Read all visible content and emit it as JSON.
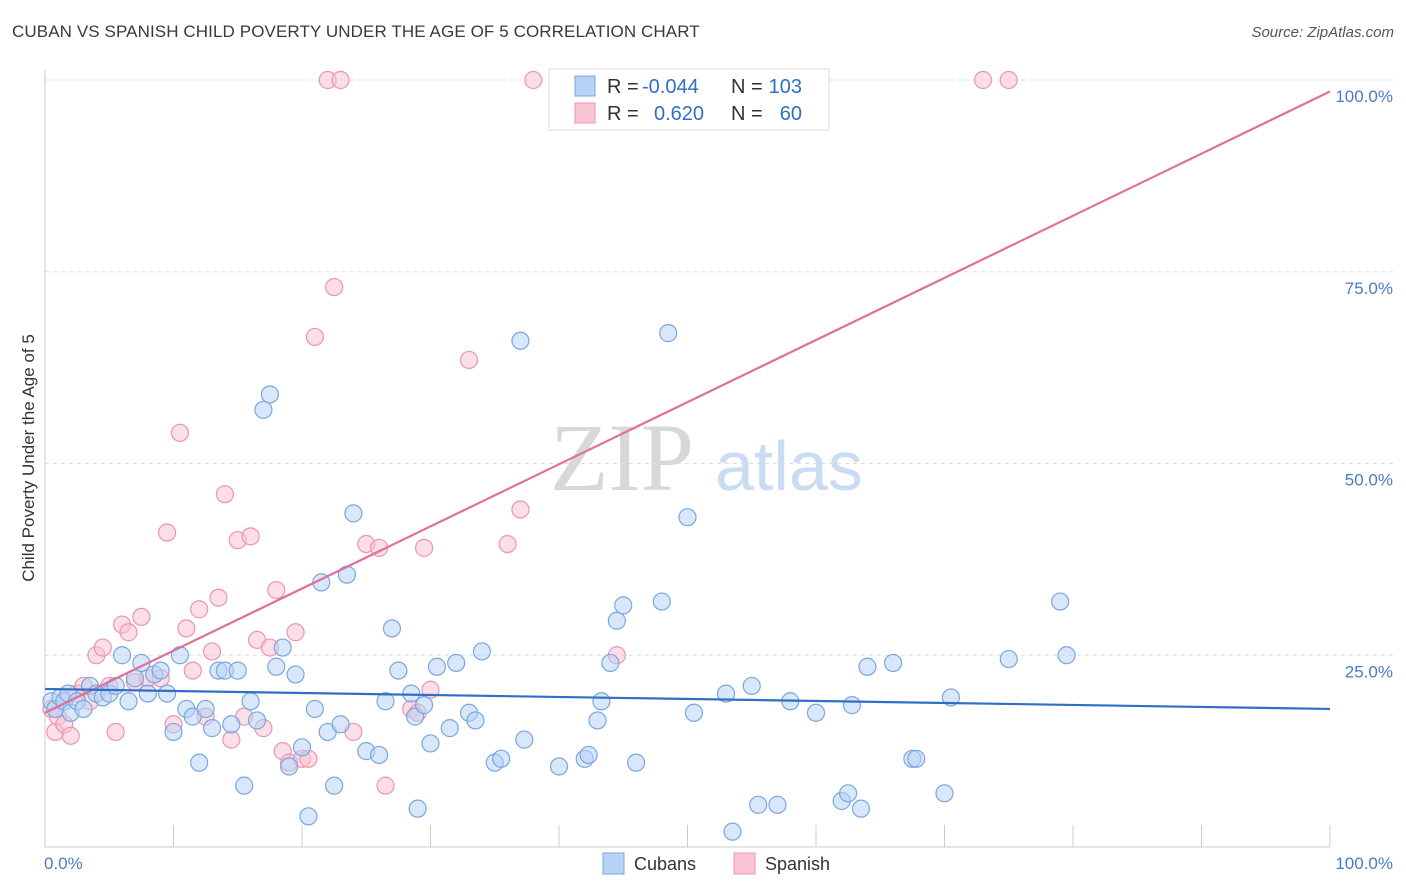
{
  "header": {
    "title": "CUBAN VS SPANISH CHILD POVERTY UNDER THE AGE OF 5 CORRELATION CHART",
    "source": "Source: ZipAtlas.com"
  },
  "watermark": {
    "zip": "ZIP",
    "atlas": "atlas"
  },
  "legend": {
    "rows": [
      {
        "r_label": "R =",
        "r_value": "-0.044",
        "n_label": "N =",
        "n_value": "103"
      },
      {
        "r_label": "R =",
        "r_value": "0.620",
        "n_label": "N =",
        "n_value": "60"
      }
    ]
  },
  "bottom_legend": [
    "Cubans",
    "Spanish"
  ],
  "colors": {
    "cubans_fill": "#b8d3f5",
    "cubans_stroke": "#7aa7e0",
    "cubans_line": "#2f6fc4",
    "spanish_fill": "#f8c3d3",
    "spanish_stroke": "#ee94b0",
    "spanish_line": "#e0709a",
    "tick": "#4a7cc4",
    "grid": "#dddddd"
  },
  "chart_data": {
    "type": "scatter",
    "title": "CUBAN VS SPANISH CHILD POVERTY UNDER THE AGE OF 5 CORRELATION CHART",
    "xlabel": "",
    "ylabel": "Child Poverty Under the Age of 5",
    "xlim": [
      0,
      100
    ],
    "ylim": [
      0,
      100
    ],
    "x_tick_labels": [
      "0.0%",
      "100.0%"
    ],
    "y_ticks": [
      25,
      50,
      75,
      100
    ],
    "y_tick_labels": [
      "25.0%",
      "50.0%",
      "75.0%",
      "100.0%"
    ],
    "grid": true,
    "legend_position": "top-center",
    "series": [
      {
        "name": "Cubans",
        "r": -0.044,
        "n": 103,
        "trend": {
          "x": [
            0,
            100
          ],
          "y": [
            20.6,
            18.0
          ]
        },
        "points": [
          [
            0.5,
            19
          ],
          [
            0.8,
            18
          ],
          [
            1.2,
            19.5
          ],
          [
            1.5,
            19
          ],
          [
            1.8,
            20
          ],
          [
            2,
            17.5
          ],
          [
            2.5,
            19
          ],
          [
            3,
            18
          ],
          [
            3.5,
            21
          ],
          [
            4,
            20
          ],
          [
            4.5,
            19.5
          ],
          [
            5,
            20
          ],
          [
            5.5,
            21
          ],
          [
            6,
            25
          ],
          [
            6.5,
            19
          ],
          [
            7,
            22
          ],
          [
            7.5,
            24
          ],
          [
            8,
            20
          ],
          [
            8.5,
            22.5
          ],
          [
            9,
            23
          ],
          [
            9.5,
            20
          ],
          [
            10,
            15
          ],
          [
            10.5,
            25
          ],
          [
            11,
            18
          ],
          [
            11.5,
            17
          ],
          [
            12,
            11
          ],
          [
            12.5,
            18
          ],
          [
            13,
            15.5
          ],
          [
            13.5,
            23
          ],
          [
            14,
            23
          ],
          [
            15,
            23
          ],
          [
            14.5,
            16
          ],
          [
            15.5,
            8
          ],
          [
            16,
            19
          ],
          [
            16.5,
            16.5
          ],
          [
            17,
            57
          ],
          [
            17.5,
            59
          ],
          [
            18,
            23.5
          ],
          [
            18.5,
            26
          ],
          [
            19,
            10.5
          ],
          [
            19.5,
            22.5
          ],
          [
            20,
            13
          ],
          [
            20.5,
            4
          ],
          [
            21,
            18
          ],
          [
            21.5,
            34.5
          ],
          [
            22,
            15
          ],
          [
            22.5,
            8
          ],
          [
            23,
            16
          ],
          [
            23.5,
            35.5
          ],
          [
            24,
            43.5
          ],
          [
            25,
            12.5
          ],
          [
            26,
            12
          ],
          [
            26.5,
            19
          ],
          [
            27,
            28.5
          ],
          [
            27.5,
            23
          ],
          [
            28.5,
            20
          ],
          [
            28.8,
            17
          ],
          [
            29,
            5
          ],
          [
            29.5,
            18.5
          ],
          [
            30,
            13.5
          ],
          [
            30.5,
            23.5
          ],
          [
            31.5,
            15.5
          ],
          [
            32,
            24
          ],
          [
            33,
            17.5
          ],
          [
            33.5,
            16.5
          ],
          [
            34,
            25.5
          ],
          [
            35,
            11
          ],
          [
            35.5,
            11.5
          ],
          [
            37,
            66
          ],
          [
            37.3,
            14
          ],
          [
            40,
            10.5
          ],
          [
            42,
            11.5
          ],
          [
            42.3,
            12
          ],
          [
            43,
            16.5
          ],
          [
            43.3,
            19
          ],
          [
            44,
            24
          ],
          [
            44.5,
            29.5
          ],
          [
            45,
            31.5
          ],
          [
            46,
            11
          ],
          [
            48,
            32
          ],
          [
            48.5,
            67
          ],
          [
            50,
            43
          ],
          [
            50.5,
            17.5
          ],
          [
            53,
            20
          ],
          [
            53.5,
            2
          ],
          [
            55,
            21
          ],
          [
            55.5,
            5.5
          ],
          [
            57,
            5.5
          ],
          [
            58,
            19
          ],
          [
            60,
            17.5
          ],
          [
            62,
            6
          ],
          [
            62.5,
            7
          ],
          [
            62.8,
            18.5
          ],
          [
            63.5,
            5
          ],
          [
            64,
            23.5
          ],
          [
            66,
            24
          ],
          [
            67.5,
            11.5
          ],
          [
            67.8,
            11.5
          ],
          [
            70,
            7
          ],
          [
            70.5,
            19.5
          ],
          [
            75,
            24.5
          ],
          [
            79,
            32
          ],
          [
            79.5,
            25
          ]
        ]
      },
      {
        "name": "Spanish",
        "r": 0.62,
        "n": 60,
        "trend": {
          "x": [
            0,
            100
          ],
          "y": [
            17.5,
            98.5
          ]
        },
        "points": [
          [
            0.5,
            18
          ],
          [
            0.8,
            15
          ],
          [
            1,
            17
          ],
          [
            1.5,
            16
          ],
          [
            2,
            14.5
          ],
          [
            2.5,
            20
          ],
          [
            3,
            21
          ],
          [
            3.5,
            19
          ],
          [
            4,
            25
          ],
          [
            4.5,
            26
          ],
          [
            5,
            21
          ],
          [
            5.5,
            15
          ],
          [
            6,
            29
          ],
          [
            6.5,
            28
          ],
          [
            7,
            21.5
          ],
          [
            7.5,
            30
          ],
          [
            8,
            22
          ],
          [
            9,
            22
          ],
          [
            9.5,
            41
          ],
          [
            10,
            16
          ],
          [
            10.5,
            54
          ],
          [
            11,
            28.5
          ],
          [
            11.5,
            23
          ],
          [
            12,
            31
          ],
          [
            12.5,
            17
          ],
          [
            13,
            25.5
          ],
          [
            13.5,
            32.5
          ],
          [
            14,
            46
          ],
          [
            14.5,
            14
          ],
          [
            15,
            40
          ],
          [
            15.5,
            17
          ],
          [
            16,
            40.5
          ],
          [
            16.5,
            27
          ],
          [
            17,
            15.5
          ],
          [
            17.5,
            26
          ],
          [
            18,
            33.5
          ],
          [
            18.5,
            12.5
          ],
          [
            19,
            11
          ],
          [
            19.5,
            28
          ],
          [
            20,
            11.5
          ],
          [
            20.5,
            11.5
          ],
          [
            21,
            66.5
          ],
          [
            22,
            100
          ],
          [
            22.5,
            73
          ],
          [
            23,
            100
          ],
          [
            24,
            15
          ],
          [
            25,
            39.5
          ],
          [
            26,
            39
          ],
          [
            26.5,
            8
          ],
          [
            28.5,
            18
          ],
          [
            29,
            17.5
          ],
          [
            29.5,
            39
          ],
          [
            30,
            20.5
          ],
          [
            33,
            63.5
          ],
          [
            36,
            39.5
          ],
          [
            37,
            44
          ],
          [
            38,
            100
          ],
          [
            44.5,
            25
          ],
          [
            73,
            100
          ],
          [
            75,
            100
          ]
        ]
      }
    ]
  }
}
